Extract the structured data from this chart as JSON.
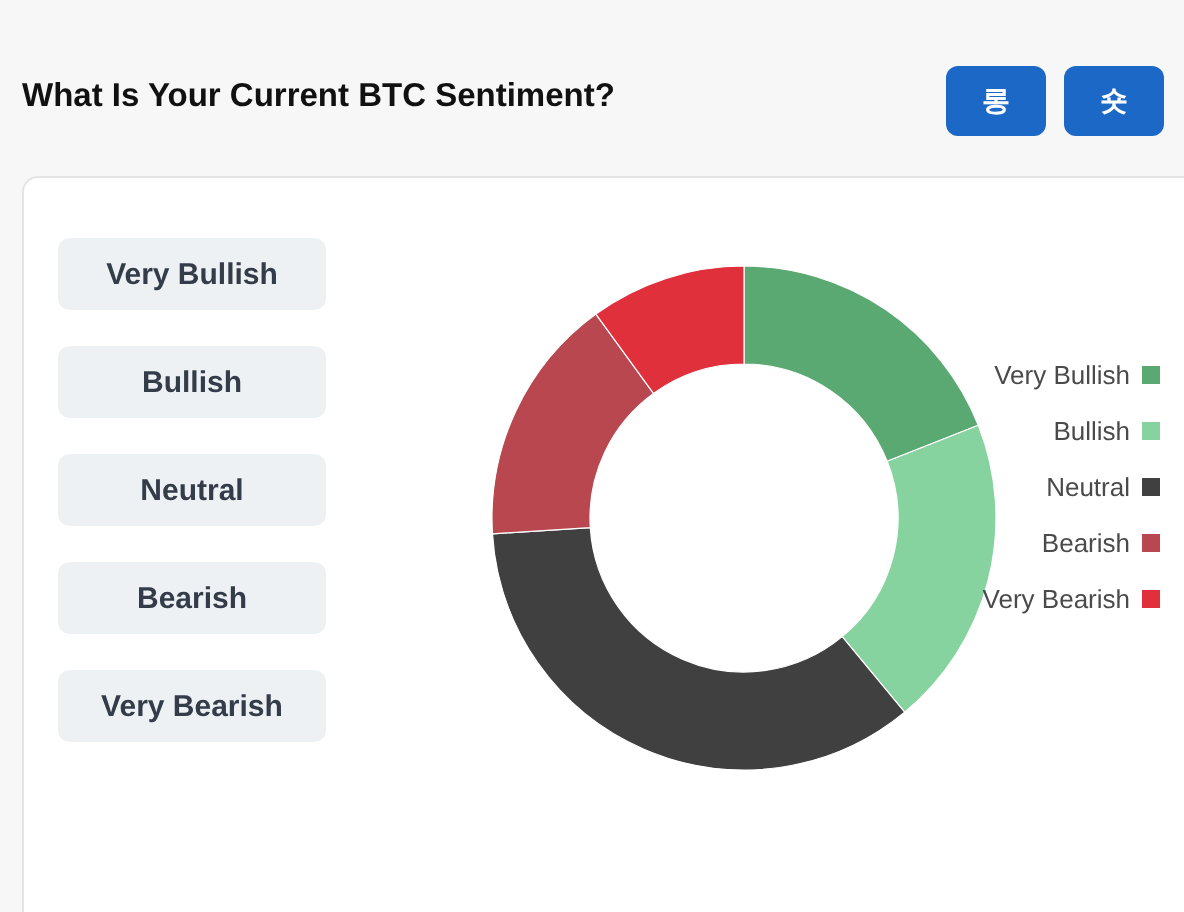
{
  "chart_data": {
    "type": "donut",
    "title": "What Is Your Current BTC Sentiment?",
    "categories": [
      "Very Bullish",
      "Bullish",
      "Neutral",
      "Bearish",
      "Very Bearish"
    ],
    "values": [
      19,
      20,
      35,
      16,
      10
    ],
    "colors": [
      "#5aa972",
      "#86d3a0",
      "#404040",
      "#b9474f",
      "#df303c"
    ],
    "legend": "right",
    "annotations": [
      "롱",
      "숏"
    ]
  }
}
